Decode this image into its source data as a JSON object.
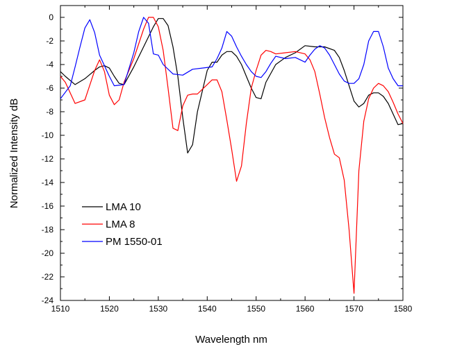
{
  "chart_data": {
    "type": "line",
    "xlabel": "Wavelength nm",
    "ylabel": "Normalized Intensity dB",
    "xlim": [
      1510,
      1580
    ],
    "ylim": [
      -24,
      1
    ],
    "xticks": [
      1510,
      1520,
      1530,
      1540,
      1550,
      1560,
      1570,
      1580
    ],
    "yticks": [
      0,
      -2,
      -4,
      -6,
      -8,
      -10,
      -12,
      -14,
      -16,
      -18,
      -20,
      -22,
      -24
    ],
    "grid": false,
    "legend_position": "bottom-left",
    "series": [
      {
        "name": "LMA 10",
        "color": "#000000",
        "x": [
          1510,
          1511,
          1513,
          1515,
          1517,
          1518,
          1519,
          1520,
          1521,
          1522,
          1523,
          1525,
          1527,
          1529,
          1530,
          1531,
          1532,
          1533,
          1534,
          1535,
          1536,
          1537,
          1538,
          1540,
          1541,
          1542,
          1543,
          1544,
          1545,
          1546,
          1547,
          1548,
          1549,
          1550,
          1551,
          1552,
          1554,
          1556,
          1558,
          1560,
          1562,
          1564,
          1566,
          1567,
          1568,
          1569,
          1570,
          1571,
          1572,
          1573,
          1574,
          1575,
          1576,
          1577,
          1578,
          1579,
          1580
        ],
        "y": [
          -4.6,
          -5.0,
          -5.7,
          -5.2,
          -4.5,
          -4.2,
          -4.1,
          -4.3,
          -5.0,
          -5.6,
          -5.7,
          -4.2,
          -2.5,
          -0.8,
          -0.1,
          -0.1,
          -0.7,
          -2.5,
          -5.0,
          -8.5,
          -11.5,
          -10.8,
          -8.0,
          -4.5,
          -3.8,
          -3.8,
          -3.2,
          -2.9,
          -2.9,
          -3.3,
          -4.0,
          -5.0,
          -6.0,
          -6.8,
          -6.9,
          -5.5,
          -4.0,
          -3.4,
          -3.0,
          -2.4,
          -2.5,
          -2.5,
          -2.8,
          -3.4,
          -4.5,
          -5.8,
          -7.1,
          -7.6,
          -7.3,
          -6.6,
          -6.4,
          -6.4,
          -6.7,
          -7.3,
          -8.2,
          -9.1,
          -9.0
        ]
      },
      {
        "name": "LMA 8",
        "color": "#ff0000",
        "x": [
          1510,
          1511,
          1513,
          1515,
          1517,
          1518,
          1519,
          1520,
          1521,
          1522,
          1523,
          1525,
          1527,
          1528,
          1529,
          1530,
          1531,
          1532,
          1533,
          1534,
          1535,
          1536,
          1537,
          1538,
          1540,
          1541,
          1542,
          1543,
          1544,
          1545,
          1546,
          1547,
          1548,
          1549,
          1550,
          1551,
          1552,
          1553,
          1554,
          1556,
          1558,
          1560,
          1561,
          1562,
          1563,
          1564,
          1565,
          1566,
          1567,
          1568,
          1569,
          1570,
          1571,
          1572,
          1573,
          1574,
          1575,
          1576,
          1577,
          1578,
          1579,
          1580
        ],
        "y": [
          -5.0,
          -5.5,
          -7.3,
          -7.0,
          -4.5,
          -3.6,
          -4.6,
          -6.6,
          -7.4,
          -7.0,
          -5.5,
          -3.5,
          -1.0,
          0.0,
          0.0,
          -0.8,
          -2.8,
          -6.0,
          -9.4,
          -9.6,
          -7.5,
          -6.6,
          -6.5,
          -6.5,
          -5.7,
          -5.3,
          -5.3,
          -6.3,
          -8.7,
          -11.2,
          -13.9,
          -12.6,
          -9.0,
          -6.0,
          -4.5,
          -3.2,
          -2.8,
          -2.9,
          -3.1,
          -3.0,
          -2.9,
          -3.1,
          -3.6,
          -4.6,
          -6.5,
          -8.5,
          -10.2,
          -11.6,
          -11.9,
          -13.8,
          -18.0,
          -23.4,
          -13.0,
          -8.8,
          -6.9,
          -6.0,
          -5.6,
          -5.8,
          -6.3,
          -7.2,
          -8.2,
          -9.0
        ]
      },
      {
        "name": "PM 1550-01",
        "color": "#0000ff",
        "x": [
          1510,
          1512,
          1513,
          1514,
          1515,
          1516,
          1517,
          1518,
          1520,
          1521,
          1523,
          1525,
          1526,
          1527,
          1528,
          1529,
          1530,
          1531,
          1533,
          1535,
          1537,
          1539,
          1541,
          1542,
          1543,
          1544,
          1545,
          1546,
          1547,
          1548,
          1549,
          1550,
          1551,
          1552,
          1553,
          1554,
          1556,
          1558,
          1560,
          1561,
          1562,
          1563,
          1564,
          1565,
          1566,
          1567,
          1568,
          1569,
          1570,
          1571,
          1572,
          1573,
          1574,
          1575,
          1576,
          1577,
          1578,
          1579,
          1580
        ],
        "y": [
          -6.9,
          -5.8,
          -4.2,
          -2.5,
          -0.9,
          -0.2,
          -1.3,
          -3.2,
          -5.0,
          -5.8,
          -5.7,
          -3.0,
          -1.2,
          0.0,
          -0.5,
          -3.1,
          -3.2,
          -4.0,
          -4.8,
          -4.9,
          -4.4,
          -4.3,
          -4.2,
          -3.5,
          -2.6,
          -1.2,
          -1.6,
          -2.5,
          -3.3,
          -4.0,
          -4.6,
          -5.0,
          -5.1,
          -4.6,
          -3.9,
          -3.3,
          -3.5,
          -3.4,
          -3.8,
          -3.2,
          -2.7,
          -2.4,
          -2.6,
          -3.2,
          -4.0,
          -4.8,
          -5.4,
          -5.6,
          -5.6,
          -5.2,
          -4.0,
          -2.0,
          -1.2,
          -1.2,
          -2.5,
          -4.3,
          -5.2,
          -5.8,
          -5.8
        ]
      }
    ]
  }
}
